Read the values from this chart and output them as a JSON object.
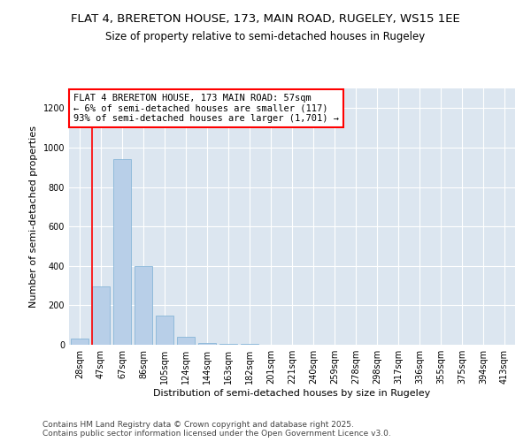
{
  "title_line1": "FLAT 4, BRERETON HOUSE, 173, MAIN ROAD, RUGELEY, WS15 1EE",
  "title_line2": "Size of property relative to semi-detached houses in Rugeley",
  "xlabel": "Distribution of semi-detached houses by size in Rugeley",
  "ylabel": "Number of semi-detached properties",
  "categories": [
    "28sqm",
    "47sqm",
    "67sqm",
    "86sqm",
    "105sqm",
    "124sqm",
    "144sqm",
    "163sqm",
    "182sqm",
    "201sqm",
    "221sqm",
    "240sqm",
    "259sqm",
    "278sqm",
    "298sqm",
    "317sqm",
    "336sqm",
    "355sqm",
    "375sqm",
    "394sqm",
    "413sqm"
  ],
  "values": [
    30,
    295,
    940,
    400,
    150,
    40,
    10,
    5,
    3,
    2,
    1,
    0,
    0,
    0,
    0,
    0,
    0,
    0,
    0,
    0,
    0
  ],
  "bar_color": "#b8cfe8",
  "bar_edge_color": "#7aaed4",
  "vline_color": "red",
  "annotation_text": "FLAT 4 BRERETON HOUSE, 173 MAIN ROAD: 57sqm\n← 6% of semi-detached houses are smaller (117)\n93% of semi-detached houses are larger (1,701) →",
  "annotation_box_color": "white",
  "annotation_box_edge_color": "red",
  "ylim": [
    0,
    1300
  ],
  "yticks": [
    0,
    200,
    400,
    600,
    800,
    1000,
    1200
  ],
  "figure_bg": "#ffffff",
  "plot_bg": "#dce6f0",
  "footer_line1": "Contains HM Land Registry data © Crown copyright and database right 2025.",
  "footer_line2": "Contains public sector information licensed under the Open Government Licence v3.0.",
  "grid_color": "white",
  "title_fontsize": 9.5,
  "subtitle_fontsize": 8.5,
  "axis_label_fontsize": 8,
  "tick_fontsize": 7,
  "annotation_fontsize": 7.5,
  "footer_fontsize": 6.5
}
